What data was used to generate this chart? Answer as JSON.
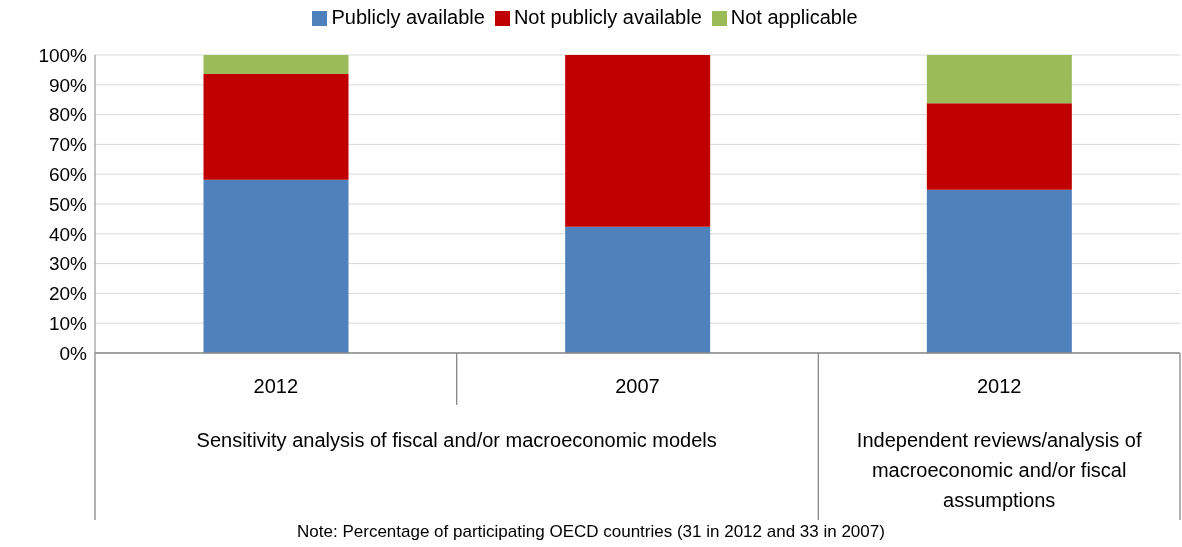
{
  "chart_data": {
    "type": "bar",
    "stacked": true,
    "categories": [
      "2012",
      "2007",
      "2012"
    ],
    "series": [
      {
        "name": "Publicly available",
        "color": "#4f81bd",
        "values": [
          58.1,
          42.4,
          54.8
        ]
      },
      {
        "name": "Not publicly available",
        "color": "#c00000",
        "values": [
          35.5,
          57.6,
          29.0
        ]
      },
      {
        "name": "Not applicable",
        "color": "#9bbb59",
        "values": [
          6.4,
          null,
          16.2
        ]
      }
    ],
    "ylim": [
      0,
      100
    ],
    "yticks": [
      {
        "value": 0,
        "label": "0%"
      },
      {
        "value": 10,
        "label": "10%"
      },
      {
        "value": 20,
        "label": "20%"
      },
      {
        "value": 30,
        "label": "30%"
      },
      {
        "value": 40,
        "label": "40%"
      },
      {
        "value": 50,
        "label": "50%"
      },
      {
        "value": 60,
        "label": "60%"
      },
      {
        "value": 70,
        "label": "70%"
      },
      {
        "value": 80,
        "label": "80%"
      },
      {
        "value": 90,
        "label": "90%"
      },
      {
        "value": 100,
        "label": "100%"
      }
    ],
    "grid": "y",
    "legend": "top",
    "annotations": [
      "Sensitivity analysis of fiscal and/or macroeconomic models",
      "Independent reviews/analysis of macroeconomic and/or fiscal assumptions",
      "Note: Percentage of participating OECD countries (31 in 2012 and 33 in 2007)"
    ]
  }
}
